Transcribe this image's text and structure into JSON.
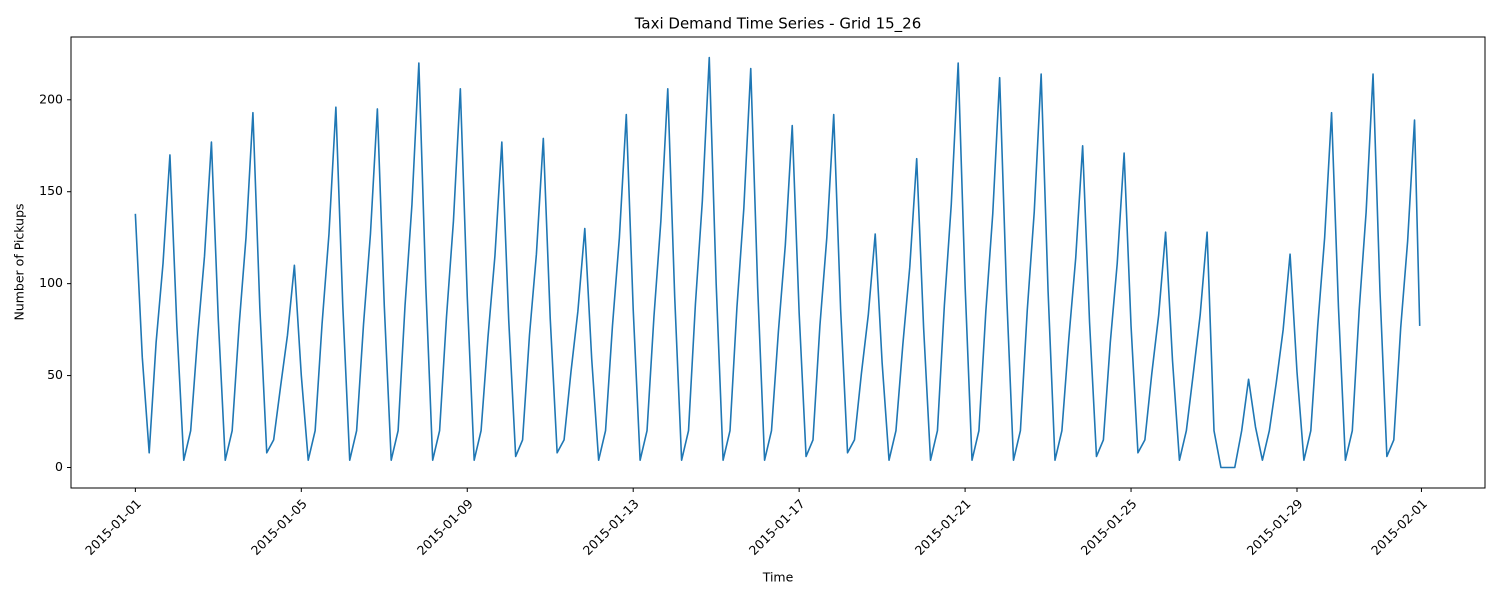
{
  "chart_data": {
    "type": "line",
    "title": "Taxi Demand Time Series - Grid 15_26",
    "xlabel": "Time",
    "ylabel": "Number of Pickups",
    "color": "#1f77b4",
    "grid": false,
    "x": [
      "2015-01-01T00:00",
      "2015-01-01T04:00",
      "2015-01-01T08:00",
      "2015-01-01T12:00",
      "2015-01-01T16:00",
      "2015-01-01T20:00",
      "2015-01-02T00:00",
      "2015-01-02T04:00",
      "2015-01-02T08:00",
      "2015-01-02T12:00",
      "2015-01-02T16:00",
      "2015-01-02T20:00",
      "2015-01-03T00:00",
      "2015-01-03T04:00",
      "2015-01-03T08:00",
      "2015-01-03T12:00",
      "2015-01-03T16:00",
      "2015-01-03T20:00",
      "2015-01-04T00:00",
      "2015-01-04T04:00",
      "2015-01-04T08:00",
      "2015-01-04T12:00",
      "2015-01-04T16:00",
      "2015-01-04T20:00",
      "2015-01-05T00:00",
      "2015-01-05T04:00",
      "2015-01-05T08:00",
      "2015-01-05T12:00",
      "2015-01-05T16:00",
      "2015-01-05T20:00",
      "2015-01-06T00:00",
      "2015-01-06T04:00",
      "2015-01-06T08:00",
      "2015-01-06T12:00",
      "2015-01-06T16:00",
      "2015-01-06T20:00",
      "2015-01-07T00:00",
      "2015-01-07T04:00",
      "2015-01-07T08:00",
      "2015-01-07T12:00",
      "2015-01-07T16:00",
      "2015-01-07T20:00",
      "2015-01-08T00:00",
      "2015-01-08T04:00",
      "2015-01-08T08:00",
      "2015-01-08T12:00",
      "2015-01-08T16:00",
      "2015-01-08T20:00",
      "2015-01-09T00:00",
      "2015-01-09T04:00",
      "2015-01-09T08:00",
      "2015-01-09T12:00",
      "2015-01-09T16:00",
      "2015-01-09T20:00",
      "2015-01-10T00:00",
      "2015-01-10T04:00",
      "2015-01-10T08:00",
      "2015-01-10T12:00",
      "2015-01-10T16:00",
      "2015-01-10T20:00",
      "2015-01-11T00:00",
      "2015-01-11T04:00",
      "2015-01-11T08:00",
      "2015-01-11T12:00",
      "2015-01-11T16:00",
      "2015-01-11T20:00",
      "2015-01-12T00:00",
      "2015-01-12T04:00",
      "2015-01-12T08:00",
      "2015-01-12T12:00",
      "2015-01-12T16:00",
      "2015-01-12T20:00",
      "2015-01-13T00:00",
      "2015-01-13T04:00",
      "2015-01-13T08:00",
      "2015-01-13T12:00",
      "2015-01-13T16:00",
      "2015-01-13T20:00",
      "2015-01-14T00:00",
      "2015-01-14T04:00",
      "2015-01-14T08:00",
      "2015-01-14T12:00",
      "2015-01-14T16:00",
      "2015-01-14T20:00",
      "2015-01-15T00:00",
      "2015-01-15T04:00",
      "2015-01-15T08:00",
      "2015-01-15T12:00",
      "2015-01-15T16:00",
      "2015-01-15T20:00",
      "2015-01-16T00:00",
      "2015-01-16T04:00",
      "2015-01-16T08:00",
      "2015-01-16T12:00",
      "2015-01-16T16:00",
      "2015-01-16T20:00",
      "2015-01-17T00:00",
      "2015-01-17T04:00",
      "2015-01-17T08:00",
      "2015-01-17T12:00",
      "2015-01-17T16:00",
      "2015-01-17T20:00",
      "2015-01-18T00:00",
      "2015-01-18T04:00",
      "2015-01-18T08:00",
      "2015-01-18T12:00",
      "2015-01-18T16:00",
      "2015-01-18T20:00",
      "2015-01-19T00:00",
      "2015-01-19T04:00",
      "2015-01-19T08:00",
      "2015-01-19T12:00",
      "2015-01-19T16:00",
      "2015-01-19T20:00",
      "2015-01-20T00:00",
      "2015-01-20T04:00",
      "2015-01-20T08:00",
      "2015-01-20T12:00",
      "2015-01-20T16:00",
      "2015-01-20T20:00",
      "2015-01-21T00:00",
      "2015-01-21T04:00",
      "2015-01-21T08:00",
      "2015-01-21T12:00",
      "2015-01-21T16:00",
      "2015-01-21T20:00",
      "2015-01-22T00:00",
      "2015-01-22T04:00",
      "2015-01-22T08:00",
      "2015-01-22T12:00",
      "2015-01-22T16:00",
      "2015-01-22T20:00",
      "2015-01-23T00:00",
      "2015-01-23T04:00",
      "2015-01-23T08:00",
      "2015-01-23T12:00",
      "2015-01-23T16:00",
      "2015-01-23T20:00",
      "2015-01-24T00:00",
      "2015-01-24T04:00",
      "2015-01-24T08:00",
      "2015-01-24T12:00",
      "2015-01-24T16:00",
      "2015-01-24T20:00",
      "2015-01-25T00:00",
      "2015-01-25T04:00",
      "2015-01-25T08:00",
      "2015-01-25T12:00",
      "2015-01-25T16:00",
      "2015-01-25T20:00",
      "2015-01-26T00:00",
      "2015-01-26T04:00",
      "2015-01-26T08:00",
      "2015-01-26T12:00",
      "2015-01-26T16:00",
      "2015-01-26T20:00",
      "2015-01-27T00:00",
      "2015-01-27T04:00",
      "2015-01-27T08:00",
      "2015-01-27T12:00",
      "2015-01-27T16:00",
      "2015-01-27T20:00",
      "2015-01-28T00:00",
      "2015-01-28T04:00",
      "2015-01-28T08:00",
      "2015-01-28T12:00",
      "2015-01-28T16:00",
      "2015-01-28T20:00",
      "2015-01-29T00:00",
      "2015-01-29T04:00",
      "2015-01-29T08:00",
      "2015-01-29T12:00",
      "2015-01-29T16:00",
      "2015-01-29T20:00",
      "2015-01-30T00:00",
      "2015-01-30T04:00",
      "2015-01-30T08:00",
      "2015-01-30T12:00",
      "2015-01-30T16:00",
      "2015-01-30T20:00",
      "2015-01-31T00:00",
      "2015-01-31T04:00",
      "2015-01-31T08:00",
      "2015-01-31T12:00",
      "2015-01-31T16:00",
      "2015-01-31T20:00",
      "2015-01-31T23:00"
    ],
    "values": [
      138,
      60,
      8,
      68,
      111,
      170,
      77,
      4,
      20,
      71,
      115,
      177,
      80,
      4,
      20,
      77,
      125,
      193,
      87,
      8,
      15,
      44,
      72,
      110,
      50,
      4,
      20,
      78,
      127,
      196,
      88,
      4,
      20,
      78,
      127,
      195,
      88,
      4,
      20,
      88,
      143,
      220,
      99,
      4,
      20,
      82,
      134,
      206,
      93,
      4,
      20,
      71,
      115,
      177,
      80,
      6,
      15,
      72,
      116,
      179,
      81,
      8,
      15,
      52,
      85,
      130,
      59,
      4,
      20,
      77,
      125,
      192,
      86,
      4,
      20,
      82,
      134,
      206,
      93,
      4,
      20,
      89,
      145,
      223,
      100,
      4,
      20,
      87,
      141,
      217,
      98,
      4,
      20,
      74,
      121,
      186,
      84,
      6,
      15,
      77,
      125,
      192,
      86,
      8,
      15,
      51,
      83,
      127,
      57,
      4,
      20,
      67,
      109,
      168,
      76,
      4,
      20,
      88,
      143,
      220,
      99,
      4,
      20,
      85,
      138,
      212,
      95,
      4,
      20,
      86,
      139,
      214,
      96,
      4,
      20,
      70,
      114,
      175,
      79,
      6,
      15,
      68,
      111,
      171,
      77,
      8,
      15,
      51,
      83,
      128,
      58,
      4,
      20,
      51,
      83,
      128,
      20,
      0,
      0,
      0,
      20,
      48,
      22,
      4,
      20,
      46,
      75,
      116,
      52,
      4,
      20,
      77,
      125,
      193,
      87,
      4,
      20,
      86,
      139,
      214,
      96,
      6,
      15,
      76,
      123,
      189,
      77
    ],
    "xlim": [
      "2014-12-30T10:46",
      "2015-02-02T12:46"
    ],
    "xticks": [
      "2015-01-01",
      "2015-01-05",
      "2015-01-09",
      "2015-01-13",
      "2015-01-17",
      "2015-01-21",
      "2015-01-25",
      "2015-01-29",
      "2015-02-01"
    ],
    "ylim": [
      -11.15,
      234.15
    ],
    "yticks": [
      0,
      50,
      100,
      150,
      200
    ]
  }
}
